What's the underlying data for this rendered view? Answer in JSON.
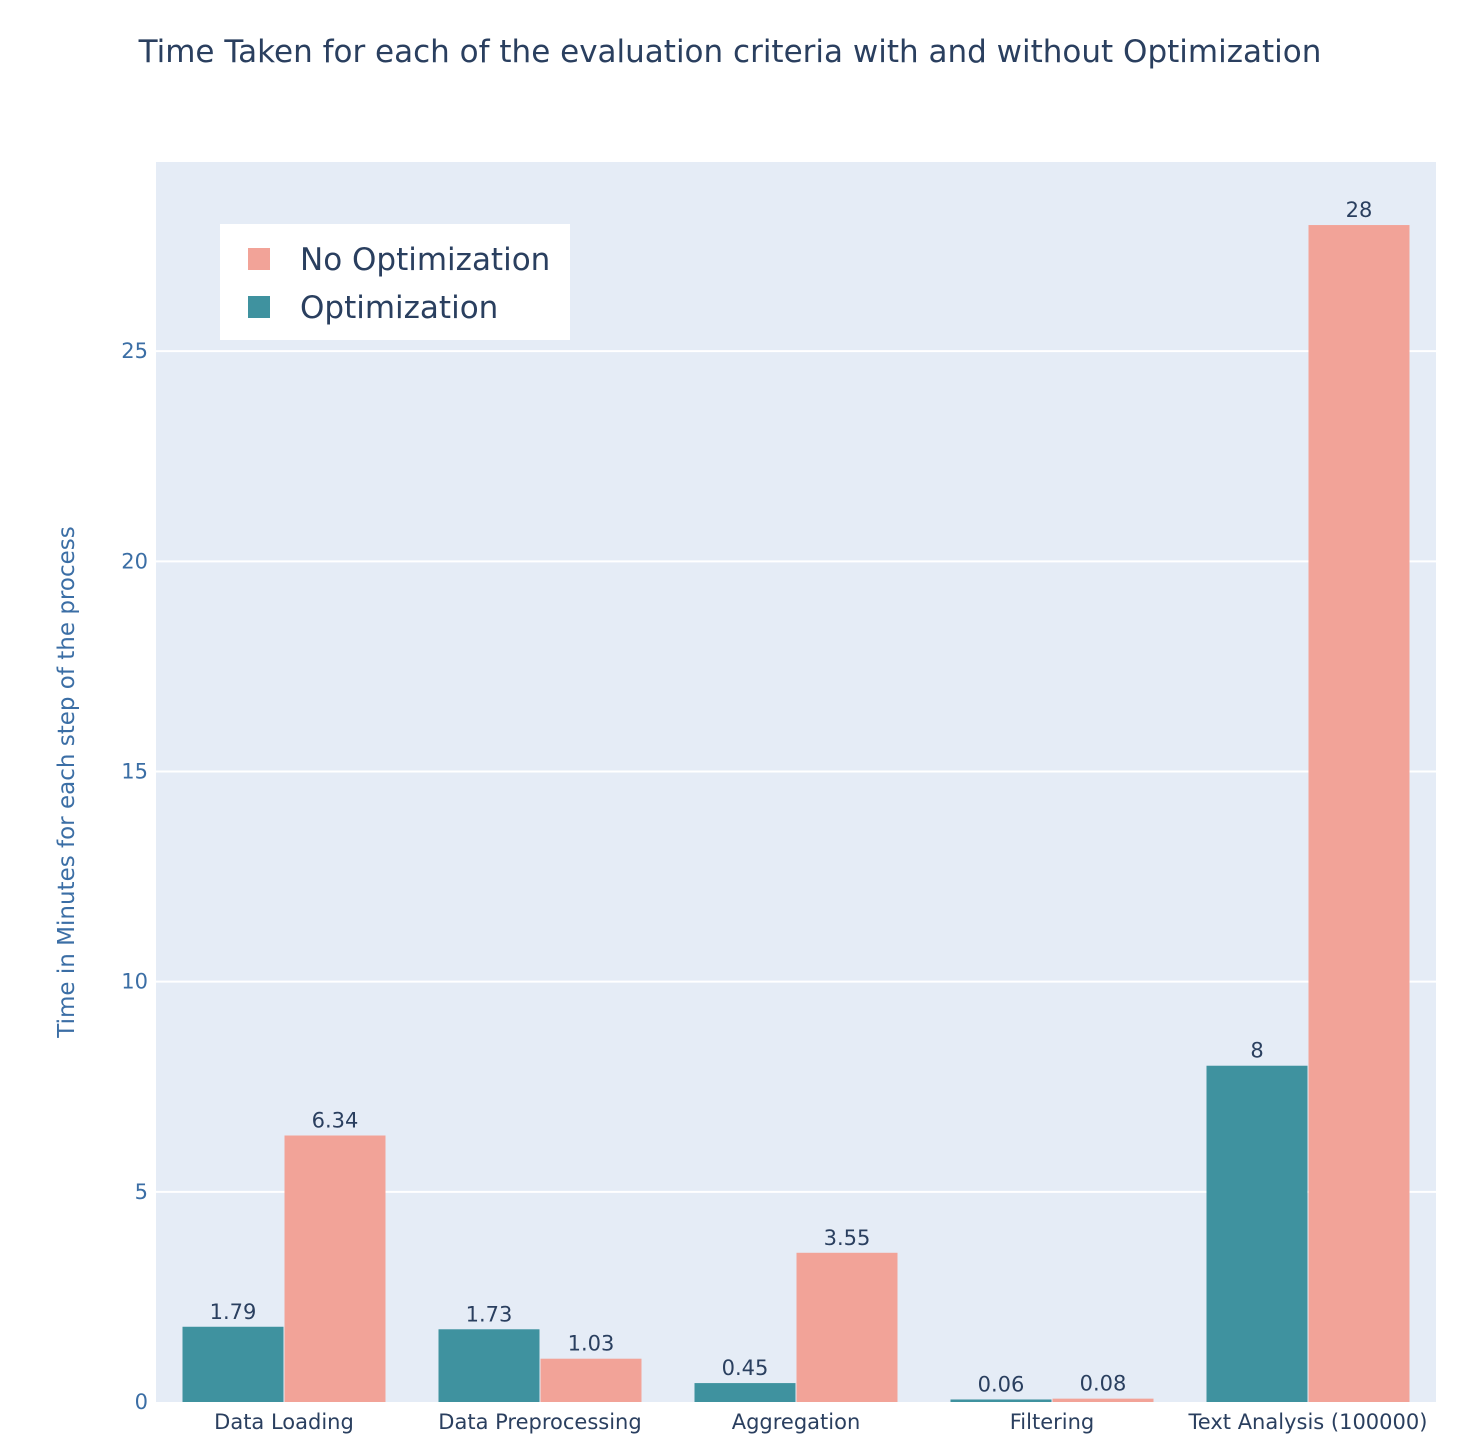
{
  "chart_data": {
    "type": "bar",
    "title": "Time Taken for each of the evaluation criteria with and without Optimization",
    "xlabel": "",
    "ylabel": "Time in Minutes for each step of the process",
    "categories": [
      "Data Loading",
      "Data Preprocessing",
      "Aggregation",
      "Filtering",
      "Text Analysis (100000)"
    ],
    "series": [
      {
        "name": "Optimization",
        "color": "#3f929f",
        "values": [
          1.79,
          1.73,
          0.45,
          0.06,
          8
        ],
        "labels": [
          "1.79",
          "1.73",
          "0.45",
          "0.06",
          "8"
        ]
      },
      {
        "name": "No Optimization",
        "color": "#f2a398",
        "values": [
          6.34,
          1.03,
          3.55,
          0.08,
          28
        ],
        "labels": [
          "6.34",
          "1.03",
          "3.55",
          "0.08",
          "28"
        ]
      }
    ],
    "legend_order": [
      "No Optimization",
      "Optimization"
    ],
    "legend_position": "top-left",
    "ylim": [
      0,
      29.5
    ],
    "yticks": [
      0,
      5,
      10,
      15,
      20,
      25
    ],
    "ytick_labels": [
      "0",
      "5",
      "10",
      "15",
      "20",
      "25"
    ],
    "grid": true,
    "plot_background": "#e5ecf6"
  }
}
